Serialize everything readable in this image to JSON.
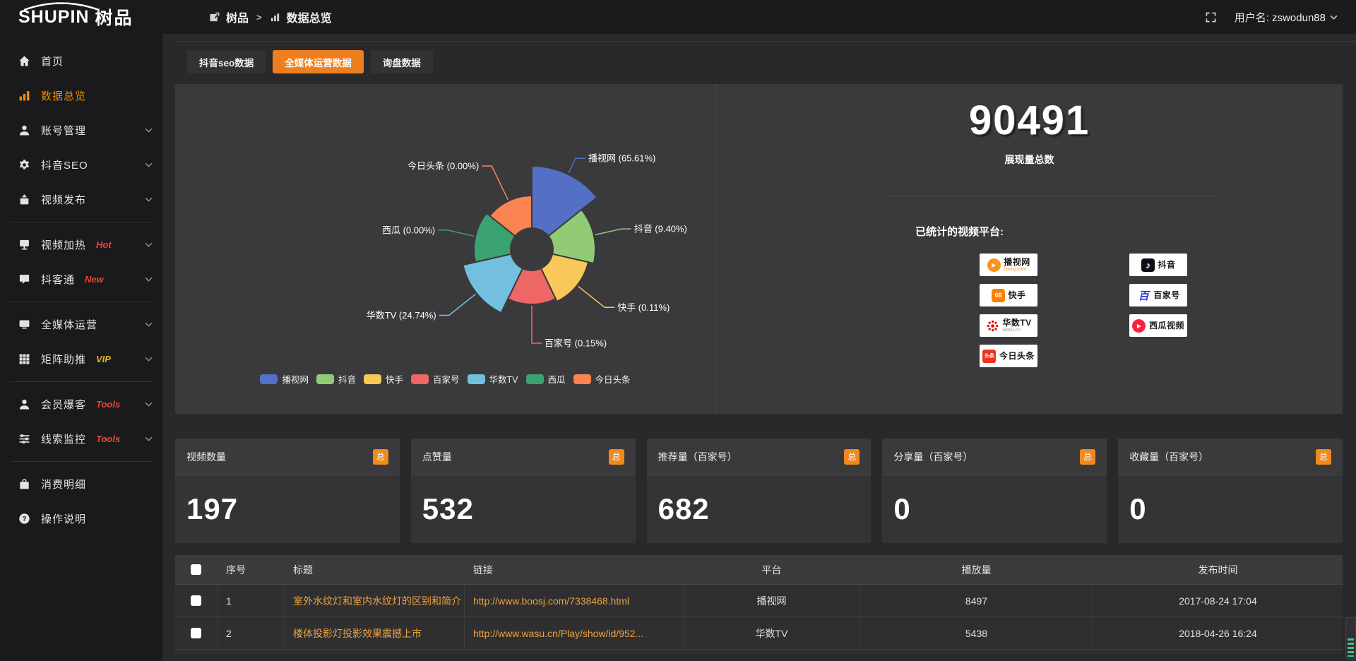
{
  "app": {
    "logo_en": "SHUPIN",
    "logo_cn": "树品"
  },
  "topbar": {
    "breadcrumb": [
      {
        "label": "树品",
        "icon": "edit-square-icon"
      },
      {
        "label": "数据总览",
        "icon": "bar-chart-icon"
      }
    ],
    "separator": ">",
    "username": "用户名: zswodun88"
  },
  "sidebar": {
    "items": [
      {
        "key": "home",
        "icon": "home",
        "label": "首页"
      },
      {
        "key": "data-overview",
        "icon": "chart",
        "label": "数据总览",
        "active": true
      },
      {
        "key": "account-manage",
        "icon": "user",
        "label": "账号管理",
        "chevron": true
      },
      {
        "key": "douyin-seo",
        "icon": "gear",
        "label": "抖音SEO",
        "chevron": true
      },
      {
        "key": "video-publish",
        "icon": "publish",
        "label": "视频发布",
        "chevron": true
      },
      {
        "divider": true
      },
      {
        "key": "video-heat",
        "icon": "screen",
        "label": "视频加热",
        "badge": "Hot",
        "badge_color": "#ef4136",
        "chevron": true
      },
      {
        "key": "doukotong",
        "icon": "chat",
        "label": "抖客通",
        "badge": "New",
        "badge_color": "#ef4136",
        "chevron": true
      },
      {
        "divider": true
      },
      {
        "key": "omnimedia-ops",
        "icon": "monitor",
        "label": "全媒体运营",
        "chevron": true
      },
      {
        "key": "matrix-boost",
        "icon": "grid",
        "label": "矩阵助推",
        "badge": "VIP",
        "badge_color": "#e8b31c",
        "chevron": true
      },
      {
        "divider": true
      },
      {
        "key": "member-burst",
        "icon": "user",
        "label": "会员爆客",
        "badge": "Tools",
        "badge_color": "#ef4136",
        "chevron": true
      },
      {
        "key": "clue-monitor",
        "icon": "sliders",
        "label": "线索监控",
        "badge": "Tools",
        "badge_color": "#ef4136",
        "chevron": true
      },
      {
        "divider": true
      },
      {
        "key": "consume-detail",
        "icon": "bag",
        "label": "消费明细"
      },
      {
        "key": "help",
        "icon": "question",
        "label": "操作说明"
      }
    ]
  },
  "tabs": [
    {
      "label": "抖音seo数据",
      "active": false
    },
    {
      "label": "全媒体运营数据",
      "active": true
    },
    {
      "label": "询盘数据",
      "active": false
    }
  ],
  "chart_data": {
    "type": "pie",
    "subtype": "nightingale-rose",
    "categories": [
      "播视网",
      "抖音",
      "快手",
      "百家号",
      "华数TV",
      "西瓜",
      "今日头条"
    ],
    "values_percent": [
      65.61,
      9.4,
      0.11,
      0.15,
      24.74,
      0.0,
      0.0
    ],
    "labels": [
      "播视网 (65.61%)",
      "抖音 (9.40%)",
      "快手 (0.11%)",
      "百家号 (0.15%)",
      "华数TV (24.74%)",
      "西瓜 (0.00%)",
      "今日头条 (0.00%)"
    ],
    "colors": [
      "#5470c6",
      "#91cc75",
      "#fac858",
      "#ee6666",
      "#73c0de",
      "#3ba272",
      "#fc8452"
    ],
    "legend": [
      "播视网",
      "抖音",
      "快手",
      "百家号",
      "华数TV",
      "西瓜",
      "今日头条"
    ],
    "legend_position": "bottom",
    "display_radii": [
      118,
      90,
      82,
      78,
      100,
      82,
      76
    ],
    "label_line_lengths": [
      25,
      40,
      50,
      55,
      50,
      40,
      55
    ]
  },
  "summary": {
    "total_value": "90491",
    "total_label": "展现量总数",
    "platforms_title": "已统计的视频平台:",
    "platforms": [
      {
        "name": "播视网",
        "caption": "boosj.com",
        "caption_color": "#f7941d",
        "icon": "boosj-logo",
        "icon_color": "#f7941d"
      },
      {
        "name": "抖音",
        "caption": "",
        "icon": "douyin-logo",
        "icon_color": "#0d0d14"
      },
      {
        "name": "快手",
        "caption": "",
        "icon": "kuaishou-logo",
        "icon_color": "#ff7e00"
      },
      {
        "name": "百家号",
        "caption": "",
        "icon": "baijiahao-logo",
        "icon_color": "#2932e1"
      },
      {
        "name": "华数TV",
        "caption": "wasu.cn",
        "caption_color": "#999999",
        "icon": "wasu-logo",
        "icon_color": "#e60012"
      },
      {
        "name": "西瓜视频",
        "caption": "",
        "icon": "xigua-logo",
        "icon_color": "#fa1f41"
      },
      {
        "name": "今日头条",
        "caption": "",
        "icon": "toutiao-logo",
        "icon_color": "#ed3321"
      }
    ]
  },
  "stat_cards": [
    {
      "label": "视频数量",
      "badge": "总",
      "value": "197"
    },
    {
      "label": "点赞量",
      "badge": "总",
      "value": "532"
    },
    {
      "label": "推荐量（百家号）",
      "badge": "总",
      "value": "682"
    },
    {
      "label": "分享量（百家号）",
      "badge": "总",
      "value": "0"
    },
    {
      "label": "收藏量（百家号）",
      "badge": "总",
      "value": "0"
    }
  ],
  "table": {
    "columns": [
      "",
      "序号",
      "标题",
      "链接",
      "平台",
      "播放量",
      "发布时间"
    ],
    "rows": [
      {
        "no": "1",
        "title": "室外水纹灯和室内水纹灯的区别和简介",
        "link": "http://www.boosj.com/7338468.html",
        "platform": "播视网",
        "plays": "8497",
        "time": "2017-08-24 17:04"
      },
      {
        "no": "2",
        "title": "楼体投影灯投影效果震撼上市",
        "link": "http://www.wasu.cn/Play/show/id/952...",
        "platform": "华数TV",
        "plays": "5438",
        "time": "2018-04-26 16:24"
      }
    ]
  },
  "colors": {
    "accent_orange": "#ee7f1e",
    "sidebar_active": "#f08a00",
    "table_link_orange": "#eda23f",
    "badge_red": "#ef4136",
    "badge_gold": "#e8b31c",
    "panel_bg": "#3a3a3d"
  }
}
